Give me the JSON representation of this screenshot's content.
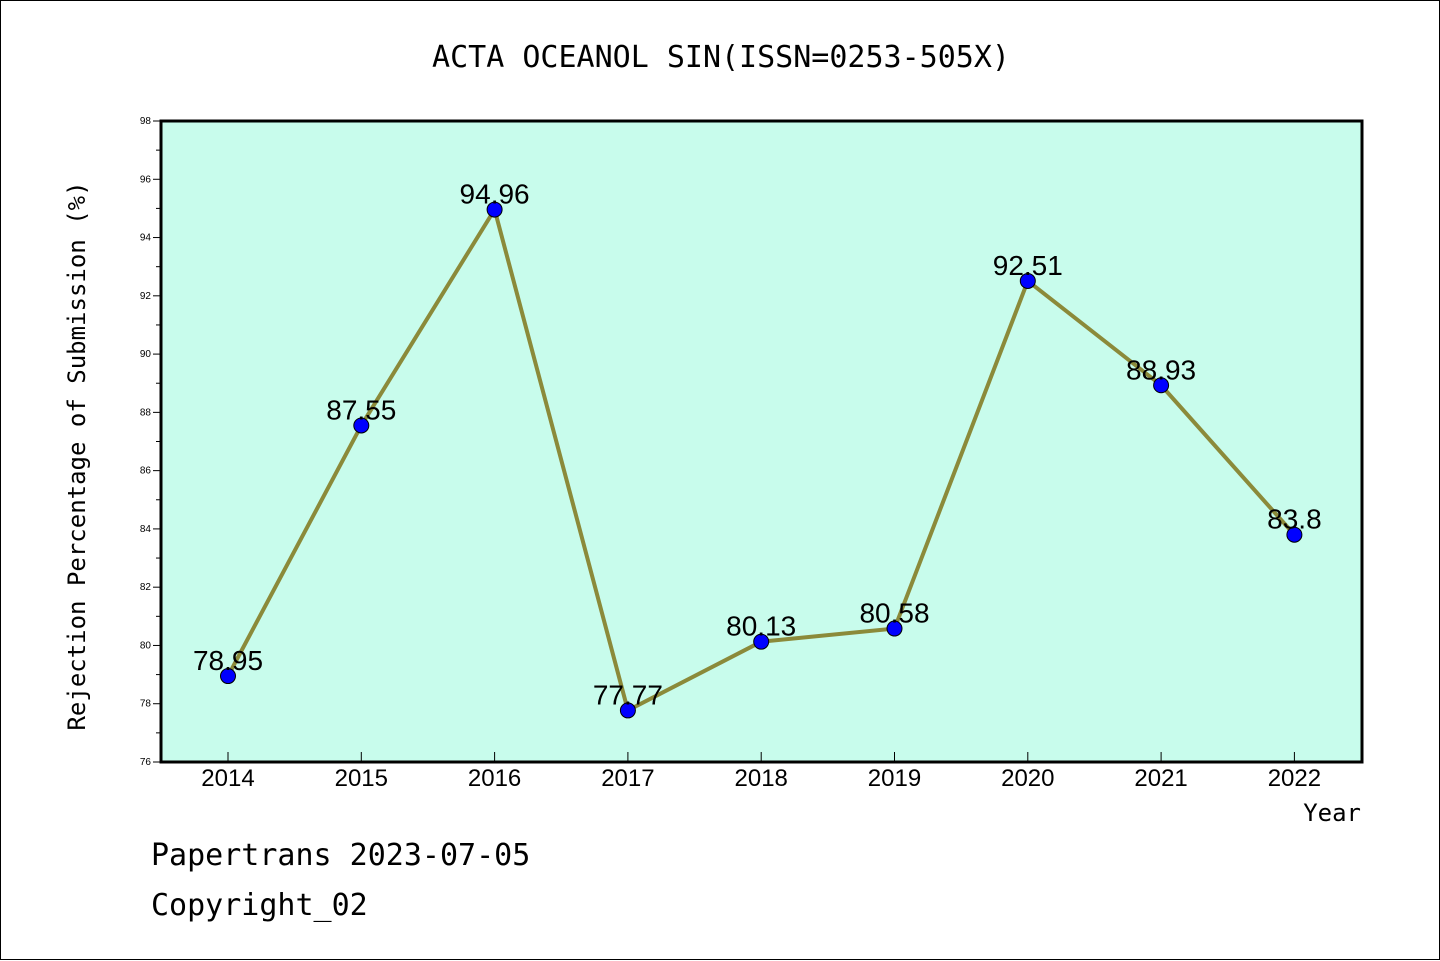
{
  "chart_data": {
    "type": "line",
    "title": "ACTA OCEANOL SIN(ISSN=0253-505X)",
    "xlabel": "Year",
    "ylabel": "Rejection Percentage of Submission (%)",
    "categories": [
      "2014",
      "2015",
      "2016",
      "2017",
      "2018",
      "2019",
      "2020",
      "2021",
      "2022"
    ],
    "values": [
      78.95,
      87.55,
      94.96,
      77.77,
      80.13,
      80.58,
      92.51,
      88.93,
      83.8
    ],
    "data_labels": [
      "78.95",
      "87.55",
      "94.96",
      "77.77",
      "80.13",
      "80.58",
      "92.51",
      "88.93",
      "83.8"
    ],
    "ylim": [
      76,
      98
    ],
    "yticks": [
      76,
      78,
      80,
      82,
      84,
      86,
      88,
      90,
      92,
      94,
      96,
      98
    ],
    "grid": false,
    "legend": "none",
    "colors": {
      "plot_background": "#c8fcec",
      "line": "#8b8a3a",
      "marker": "#0000ff"
    }
  },
  "footer": {
    "line1": "Papertrans 2023-07-05",
    "line2": "Copyright_02"
  }
}
